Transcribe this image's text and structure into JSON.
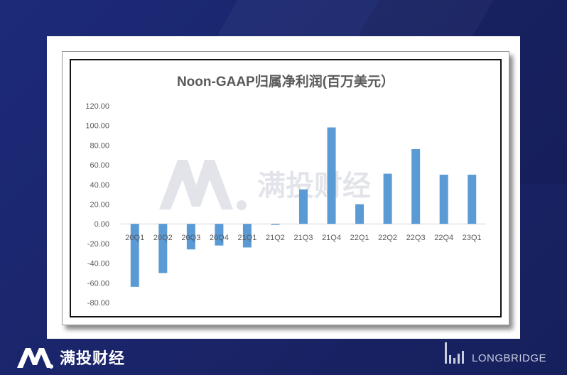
{
  "brand": {
    "name": "满投财经",
    "partner": "LONGBRIDGE",
    "colors": {
      "background": "#1c2a78",
      "bar": "#5b9bd5",
      "text": "#595959"
    }
  },
  "chart_data": {
    "type": "bar",
    "title": "Noon-GAAP归属净利润(百万美元）",
    "categories": [
      "20Q1",
      "20Q2",
      "20Q3",
      "20Q4",
      "21Q1",
      "21Q2",
      "21Q3",
      "21Q4",
      "22Q1",
      "22Q2",
      "22Q3",
      "22Q4",
      "23Q1"
    ],
    "values": [
      -64,
      -50,
      -26,
      -22,
      -24,
      -1,
      35,
      98,
      20,
      51,
      76,
      50,
      50
    ],
    "ylim": [
      -80,
      120
    ],
    "yticks": [
      "120.00",
      "100.00",
      "80.00",
      "60.00",
      "40.00",
      "20.00",
      "0.00",
      "-20.00",
      "-40.00",
      "-60.00",
      "-80.00"
    ],
    "xlabel": "",
    "ylabel": "",
    "grid": false,
    "legend": "none",
    "watermark": "满投财经"
  }
}
